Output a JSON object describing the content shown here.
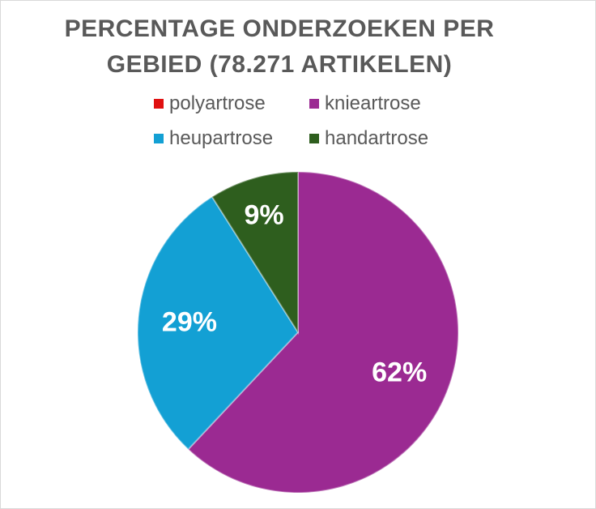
{
  "chart_data": {
    "type": "pie",
    "title_lines": [
      "PERCENTAGE ONDERZOEKEN PER",
      "GEBIED (78.271 ARTIKELEN)"
    ],
    "legend_position": "top",
    "slices": [
      {
        "name": "polyartrose",
        "value": 0,
        "label": "",
        "color": "#e01010"
      },
      {
        "name": "knieartrose",
        "value": 62,
        "label": "62%",
        "color": "#9b2a92"
      },
      {
        "name": "heupartrose",
        "value": 29,
        "label": "29%",
        "color": "#13a0d4"
      },
      {
        "name": "handartrose",
        "value": 9,
        "label": "9%",
        "color": "#2e5e1e"
      }
    ]
  }
}
